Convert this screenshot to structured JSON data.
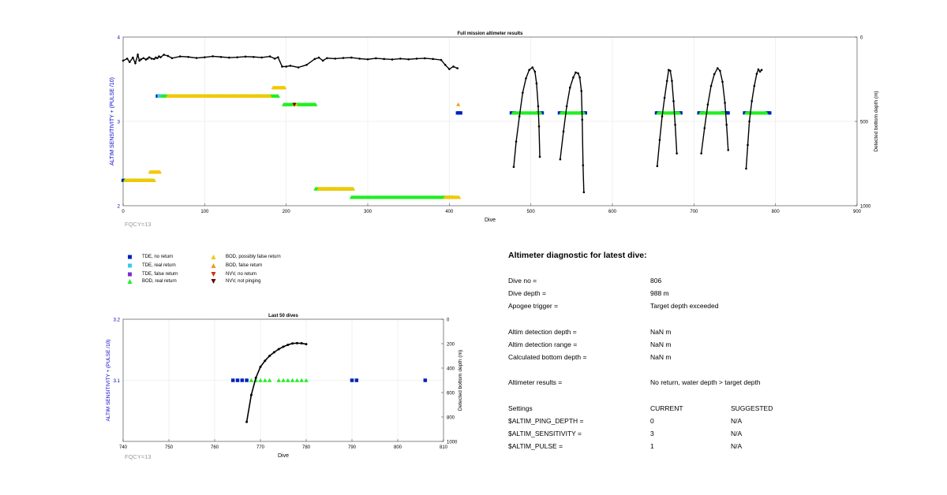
{
  "colors": {
    "axis_left": "#0000c8",
    "axis": "#333333",
    "grid": "#e6e6e6",
    "trace": "#000000",
    "tde_no_return": "#0022bb",
    "tde_real_return": "#33ccee",
    "tde_false_return": "#7733cc",
    "bod_real_return": "#22ee22",
    "bod_possibly_false": "#f4c800",
    "bod_false_return": "#f09a1a",
    "nvv_no_return": "#cc3311",
    "nvv_not_pinging": "#660000",
    "fqcy": "#999999"
  },
  "main_plot": {
    "title": "Full mission altimeter results",
    "xlabel": "Dive",
    "ylabel_left": "ALTIM SENSITIVITY + (PULSE /10)",
    "ylabel_right": "Detected bottom depth (m)",
    "xticks": [
      "0",
      "100",
      "200",
      "300",
      "400",
      "500",
      "600",
      "700",
      "800",
      "900"
    ],
    "yticks_left": [
      "2",
      "3",
      "4"
    ],
    "yticks_right": [
      "0",
      "500",
      "1000"
    ],
    "fqcy": "FQCY=13"
  },
  "mini_plot": {
    "title": "Last 50 dives",
    "xlabel": "Dive",
    "ylabel_left": "ALTIM SENSITIVITY + (PULSE /10)",
    "ylabel_right": "Detected bottom depth (m)",
    "xticks": [
      "740",
      "750",
      "760",
      "770",
      "780",
      "790",
      "800",
      "810"
    ],
    "yticks_left": [
      "3.1",
      "3.2"
    ],
    "yticks_right": [
      "0",
      "200",
      "400",
      "600",
      "800",
      "1000"
    ],
    "fqcy": "FQCY=13"
  },
  "legend": {
    "items": [
      {
        "label": "TDE, no return"
      },
      {
        "label": "TDE, real return"
      },
      {
        "label": "TDE, false return"
      },
      {
        "label": "BOD, real return"
      },
      {
        "label": "BOD, possibly false return"
      },
      {
        "label": "BOD, false return"
      },
      {
        "label": "NVV, no return"
      },
      {
        "label": "NVV, not pinging"
      }
    ]
  },
  "diagnostic": {
    "title": "Altimeter diagnostic for latest dive:",
    "dive_no_label": "Dive no =",
    "dive_no": "806",
    "dive_depth_label": "Dive depth =",
    "dive_depth": "988 m",
    "apogee_label": "Apogee trigger =",
    "apogee": "Target depth exceeded",
    "detect_depth_label": "Altim detection depth =",
    "detect_depth": "NaN m",
    "detect_range_label": "Altim detection range =",
    "detect_range": "NaN m",
    "calc_bottom_label": "Calculated bottom depth =",
    "calc_bottom": "NaN m",
    "results_label": "Altimeter results =",
    "results": "No return, water depth > target depth",
    "settings_label": "Settings",
    "current_label": "CURRENT",
    "suggested_label": "SUGGESTED",
    "ping_depth_label": "$ALTIM_PING_DEPTH =",
    "ping_depth_current": "0",
    "ping_depth_suggested": "N/A",
    "sensitivity_label": "$ALTIM_SENSITIVITY =",
    "sensitivity_current": "3",
    "sensitivity_suggested": "N/A",
    "pulse_label": "$ALTIM_PULSE =",
    "pulse_current": "1",
    "pulse_suggested": "N/A"
  },
  "chart_data": [
    {
      "type": "scatter",
      "title": "Full mission altimeter results",
      "xlabel": "Dive",
      "ylabel": "ALTIM SENSITIVITY + (PULSE /10)",
      "ylabel_right": "Detected bottom depth (m)",
      "xlim": [
        0,
        900
      ],
      "ylim": [
        2,
        4
      ],
      "ylim_right": [
        1000,
        0
      ],
      "grid": true,
      "legend": "below-left",
      "series": [
        {
          "name": "TDE, no return",
          "segments": [
            [
              0,
              2,
              2.3
            ],
            [
              42,
              46,
              3.3
            ],
            [
              410,
              414,
              3.1
            ],
            [
              476,
              480,
              3.1
            ],
            [
              508,
              514,
              3.1
            ],
            [
              535,
              539,
              3.1
            ],
            [
              562,
              567,
              3.1
            ],
            [
              654,
              658,
              3.1
            ],
            [
              678,
              684,
              3.1
            ],
            [
              706,
              711,
              3.1
            ],
            [
              735,
              742,
              3.1
            ],
            [
              762,
              766,
              3.1
            ],
            [
              789,
              793,
              3.1
            ]
          ]
        },
        {
          "name": "TDE, real return",
          "segments": [
            [
              44,
              50,
              3.3
            ]
          ]
        },
        {
          "name": "BOD, real return",
          "segments": [
            [
              2,
              38,
              2.3
            ],
            [
              48,
              190,
              3.3
            ],
            [
              197,
              236,
              3.2
            ],
            [
              236,
              282,
              2.2
            ],
            [
              280,
              404,
              2.1
            ],
            [
              478,
              512,
              3.1
            ],
            [
              537,
              565,
              3.1
            ],
            [
              656,
              682,
              3.1
            ],
            [
              708,
              738,
              3.1
            ],
            [
              764,
              789,
              3.1
            ]
          ]
        },
        {
          "name": "BOD, possibly false return",
          "segments": [
            [
              3,
              38,
              2.3
            ],
            [
              33,
              45,
              2.4
            ],
            [
              55,
              180,
              3.3
            ],
            [
              184,
              198,
              3.4
            ],
            [
              240,
              282,
              2.2
            ],
            [
              395,
              412,
              2.1
            ],
            [
              210,
              212,
              3.2
            ]
          ]
        },
        {
          "name": "BOD, false return",
          "points": [
            [
              411,
              3.2
            ]
          ]
        },
        {
          "name": "NVV, not pinging",
          "points": [
            [
              210,
              3.2
            ]
          ]
        },
        {
          "name": "Detected bottom depth",
          "segments": [
            [
              [
                0,
                140
              ],
              [
                5,
                128
              ],
              [
                8,
                148
              ],
              [
                12,
                122
              ],
              [
                15,
                155
              ],
              [
                18,
                105
              ],
              [
                20,
                140
              ],
              [
                22,
                132
              ],
              [
                25,
                125
              ],
              [
                28,
                133
              ],
              [
                30,
                128
              ],
              [
                32,
                120
              ],
              [
                35,
                128
              ],
              [
                38,
                130
              ],
              [
                40,
                122
              ],
              [
                42,
                125
              ],
              [
                44,
                115
              ],
              [
                46,
                120
              ],
              [
                50,
                105
              ],
              [
                55,
                112
              ],
              [
                60,
                125
              ],
              [
                70,
                115
              ],
              [
                80,
                118
              ],
              [
                90,
                124
              ],
              [
                100,
                120
              ],
              [
                110,
                114
              ],
              [
                120,
                118
              ],
              [
                130,
                122
              ],
              [
                140,
                120
              ],
              [
                150,
                116
              ],
              [
                160,
                118
              ],
              [
                170,
                121
              ],
              [
                180,
                115
              ],
              [
                186,
                128
              ],
              [
                190,
                120
              ],
              [
                195,
                175
              ],
              [
                200,
                175
              ],
              [
                205,
                170
              ],
              [
                215,
                180
              ],
              [
                225,
                165
              ],
              [
                235,
                130
              ],
              [
                240,
                122
              ],
              [
                245,
                140
              ],
              [
                250,
                125
              ],
              [
                260,
                128
              ],
              [
                270,
                124
              ],
              [
                280,
                122
              ],
              [
                290,
                128
              ],
              [
                300,
                132
              ],
              [
                310,
                126
              ],
              [
                320,
                130
              ],
              [
                330,
                133
              ],
              [
                340,
                128
              ],
              [
                350,
                132
              ],
              [
                360,
                128
              ],
              [
                370,
                126
              ],
              [
                380,
                130
              ],
              [
                390,
                136
              ],
              [
                395,
                165
              ],
              [
                400,
                190
              ],
              [
                405,
                175
              ],
              [
                410,
                185
              ]
            ],
            [
              [
                479,
                770
              ],
              [
                482,
                620
              ],
              [
                486,
                470
              ],
              [
                490,
                330
              ],
              [
                494,
                245
              ],
              [
                498,
                195
              ],
              [
                502,
                180
              ],
              [
                505,
                205
              ],
              [
                507,
                275
              ],
              [
                509,
                410
              ],
              [
                510,
                530
              ],
              [
                511,
                710
              ]
            ],
            [
              [
                536,
                725
              ],
              [
                540,
                560
              ],
              [
                544,
                410
              ],
              [
                548,
                300
              ],
              [
                552,
                240
              ],
              [
                555,
                210
              ],
              [
                558,
                215
              ],
              [
                560,
                240
              ],
              [
                562,
                320
              ],
              [
                563,
                490
              ],
              [
                564,
                760
              ],
              [
                565,
                920
              ]
            ],
            [
              [
                655,
                765
              ],
              [
                658,
                610
              ],
              [
                661,
                470
              ],
              [
                664,
                360
              ],
              [
                667,
                260
              ],
              [
                669,
                195
              ],
              [
                671,
                200
              ],
              [
                673,
                260
              ],
              [
                675,
                380
              ],
              [
                677,
                520
              ],
              [
                679,
                690
              ]
            ],
            [
              [
                709,
                690
              ],
              [
                713,
                540
              ],
              [
                717,
                400
              ],
              [
                721,
                290
              ],
              [
                725,
                220
              ],
              [
                729,
                185
              ],
              [
                732,
                200
              ],
              [
                735,
                265
              ],
              [
                738,
                390
              ],
              [
                740,
                520
              ],
              [
                742,
                670
              ]
            ],
            [
              [
                764,
                780
              ],
              [
                766,
                640
              ],
              [
                768,
                500
              ],
              [
                771,
                380
              ],
              [
                774,
                290
              ],
              [
                777,
                218
              ],
              [
                779,
                192
              ],
              [
                781,
                205
              ],
              [
                783,
                195
              ]
            ]
          ]
        }
      ]
    },
    {
      "type": "scatter",
      "title": "Last 50 dives",
      "xlabel": "Dive",
      "ylabel": "ALTIM SENSITIVITY + (PULSE /10)",
      "ylabel_right": "Detected bottom depth (m)",
      "xlim": [
        740,
        810
      ],
      "ylim": [
        3.0,
        3.2
      ],
      "ylim_right": [
        1000,
        0
      ],
      "grid": true,
      "series": [
        {
          "name": "TDE, no return",
          "points": [
            [
              764,
              3.1
            ],
            [
              765,
              3.1
            ],
            [
              766,
              3.1
            ],
            [
              767,
              3.1
            ],
            [
              790,
              3.1
            ],
            [
              791,
              3.1
            ],
            [
              806,
              3.1
            ]
          ]
        },
        {
          "name": "BOD, real return",
          "points": [
            [
              768,
              3.1
            ],
            [
              769,
              3.1
            ],
            [
              770,
              3.1
            ],
            [
              771,
              3.1
            ],
            [
              772,
              3.1
            ],
            [
              774,
              3.1
            ],
            [
              775,
              3.1
            ],
            [
              776,
              3.1
            ],
            [
              777,
              3.1
            ],
            [
              778,
              3.1
            ],
            [
              779,
              3.1
            ],
            [
              780,
              3.1
            ]
          ]
        },
        {
          "name": "Detected bottom depth",
          "points": [
            [
              767,
              840
            ],
            [
              768,
              620
            ],
            [
              769,
              480
            ],
            [
              770,
              390
            ],
            [
              771,
              340
            ],
            [
              772,
              300
            ],
            [
              773,
              270
            ],
            [
              774,
              245
            ],
            [
              775,
              225
            ],
            [
              776,
              210
            ],
            [
              777,
              198
            ],
            [
              778,
              196
            ],
            [
              779,
              197
            ],
            [
              780,
              204
            ]
          ]
        }
      ]
    }
  ]
}
